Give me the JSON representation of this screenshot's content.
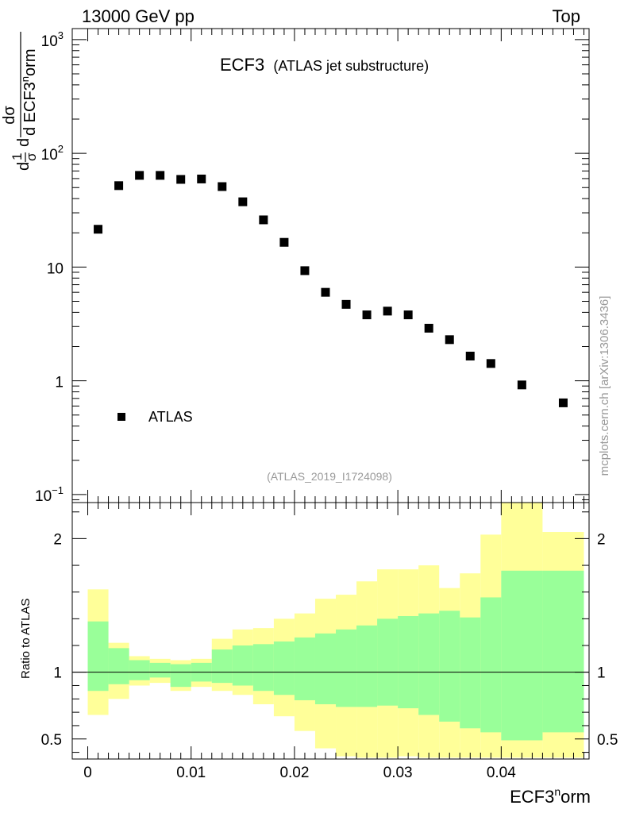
{
  "header": {
    "left": "13000 GeV pp",
    "right": "Top"
  },
  "side_label": "mcplots.cern.ch [arXiv:1306.3436]",
  "colors": {
    "green_band": "#99ff99",
    "yellow_band": "#ffff99",
    "marker": "#000000",
    "watermark": "#999999"
  },
  "chart_data": [
    {
      "type": "scatter",
      "title": "ECF3",
      "subtitle": "(ATLAS jet substructure)",
      "analysis_tag": "(ATLAS_2019_I1724098)",
      "ylabel": {
        "num_d": "d",
        "num_1": "1",
        "den_sigma": "σ",
        "d2": "d",
        "dsigma": "dσ",
        "den": "d ECF3",
        "den_sup": "n",
        "den_tail": "orm"
      },
      "yscale": "log",
      "ylim": [
        0.085,
        1250
      ],
      "xlim": [
        -0.0015,
        0.0485
      ],
      "yticks": [
        {
          "value": 0.1,
          "base": "10",
          "exp": "−1"
        },
        {
          "value": 1,
          "base": "1",
          "exp": ""
        },
        {
          "value": 10,
          "base": "10",
          "exp": ""
        },
        {
          "value": 100,
          "base": "10",
          "exp": "2"
        },
        {
          "value": 1000,
          "base": "10",
          "exp": "3"
        }
      ],
      "legend": {
        "label": "ATLAS",
        "position": "lower-left"
      },
      "series": [
        {
          "name": "ATLAS",
          "x": [
            0.001,
            0.003,
            0.005,
            0.007,
            0.009,
            0.011,
            0.013,
            0.015,
            0.017,
            0.019,
            0.021,
            0.023,
            0.025,
            0.027,
            0.029,
            0.031,
            0.033,
            0.035,
            0.037,
            0.039,
            0.042,
            0.046
          ],
          "y": [
            21.5,
            52,
            64,
            64,
            59,
            59.5,
            51,
            37.5,
            26,
            16.5,
            9.3,
            6.0,
            4.7,
            3.8,
            4.1,
            3.8,
            2.9,
            2.3,
            1.65,
            1.42,
            0.92,
            0.64
          ]
        }
      ]
    },
    {
      "type": "area",
      "ylabel": "Ratio to ATLAS",
      "xlabel": "ECF3",
      "xlabel_sup": "n",
      "xlabel_tail": "orm",
      "ylim": [
        0.35,
        2.27
      ],
      "xlim": [
        -0.0015,
        0.0485
      ],
      "reference_line": 1,
      "yticks": [
        "0.5",
        "1",
        "2"
      ],
      "xticks": [
        "0",
        "0.01",
        "0.02",
        "0.03",
        "0.04"
      ],
      "xtick_values": [
        0,
        0.01,
        0.02,
        0.03,
        0.04
      ],
      "bin_edges": [
        0,
        0.002,
        0.004,
        0.006,
        0.008,
        0.01,
        0.012,
        0.014,
        0.016,
        0.018,
        0.02,
        0.022,
        0.024,
        0.026,
        0.028,
        0.03,
        0.032,
        0.034,
        0.036,
        0.038,
        0.04,
        0.044,
        0.048
      ],
      "bands": [
        {
          "name": "stat",
          "color": "#99ff99",
          "upper": [
            1.38,
            1.18,
            1.09,
            1.07,
            1.06,
            1.07,
            1.17,
            1.2,
            1.21,
            1.23,
            1.26,
            1.29,
            1.32,
            1.35,
            1.4,
            1.42,
            1.44,
            1.46,
            1.41,
            1.56,
            1.76,
            1.76
          ],
          "lower": [
            0.86,
            0.91,
            0.94,
            0.96,
            0.89,
            0.93,
            0.92,
            0.9,
            0.86,
            0.83,
            0.79,
            0.76,
            0.74,
            0.74,
            0.75,
            0.73,
            0.68,
            0.63,
            0.58,
            0.55,
            0.49,
            0.55
          ]
        },
        {
          "name": "total",
          "color": "#ffff99",
          "upper": [
            1.62,
            1.22,
            1.12,
            1.1,
            1.09,
            1.1,
            1.25,
            1.32,
            1.33,
            1.4,
            1.44,
            1.55,
            1.58,
            1.68,
            1.77,
            1.77,
            1.8,
            1.63,
            1.74,
            2.03,
            2.27,
            2.05
          ],
          "lower": [
            0.68,
            0.8,
            0.9,
            0.92,
            0.86,
            0.89,
            0.86,
            0.83,
            0.76,
            0.67,
            0.56,
            0.43,
            0.37,
            0.36,
            0.36,
            0.37,
            0.36,
            0.36,
            0.36,
            0.36,
            0.36,
            0.36
          ]
        }
      ]
    }
  ]
}
